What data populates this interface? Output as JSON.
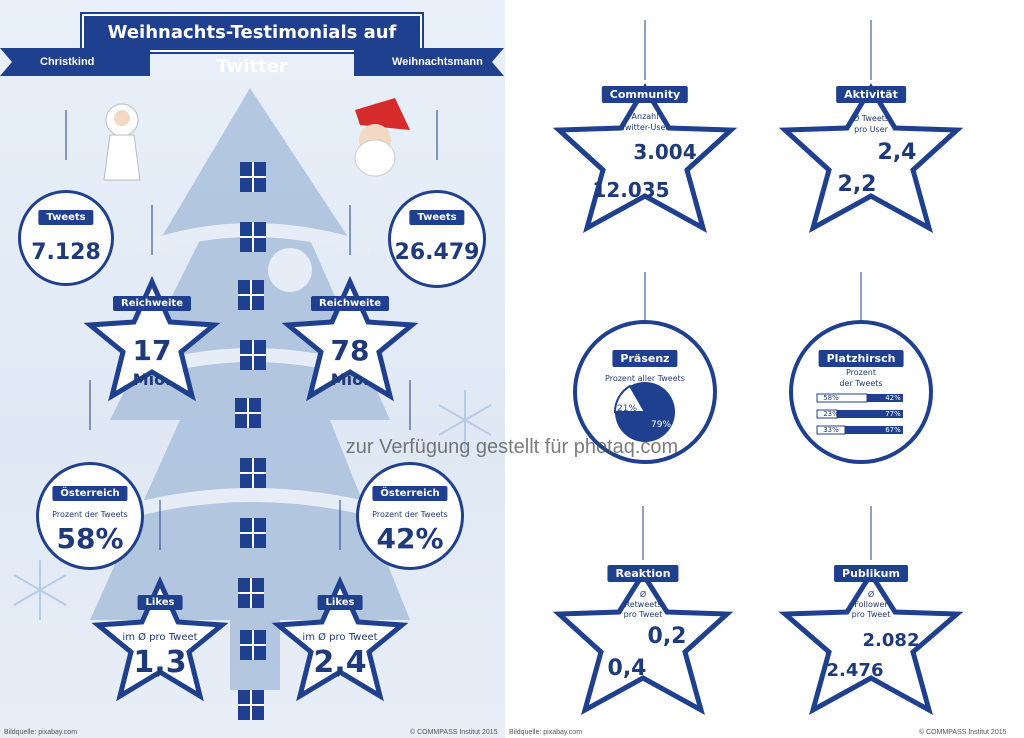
{
  "title": "Weihnachts-Testimonials auf Twitter",
  "ribbon_left": "Christkind",
  "ribbon_right": "Weihnachtsmann",
  "left": {
    "tweets_label": "Tweets",
    "tweets_christkind": "7.128",
    "tweets_weihnachtsmann": "26.479",
    "reichweite_label": "Reichweite",
    "reichweite_christkind": "17",
    "reichweite_weihnachtsmann": "78",
    "mio": "Mio.",
    "oesterreich_label": "Österreich",
    "prozent_der_tweets": "Prozent der Tweets",
    "oesterreich_christkind": "58%",
    "oesterreich_weihnachtsmann": "42%",
    "likes_label": "Likes",
    "im_pro_tweet": "im Ø pro Tweet",
    "likes_christkind": "1,3",
    "likes_weihnachtsmann": "2,4"
  },
  "right": {
    "community_label": "Community",
    "community_sub1": "Anzahl",
    "community_sub2": "Twitter-User",
    "community_christkind": "3.004",
    "community_weihnachtsmann": "12.035",
    "aktivitaet_label": "Aktivität",
    "aktivitaet_sub1": "Ø Tweets",
    "aktivitaet_sub2": "pro User",
    "aktivitaet_christkind": "2,4",
    "aktivitaet_weihnachtsmann": "2,2",
    "praesenz_label": "Präsenz",
    "praesenz_sub": "Prozent aller Tweets",
    "praesenz_christkind": "21%",
    "praesenz_weihnachtsmann": "79%",
    "platzhirsch_label": "Platzhirsch",
    "platzhirsch_sub1": "Prozent",
    "platzhirsch_sub2": "der Tweets",
    "platzhirsch_rows": [
      {
        "left": "58%",
        "right": "42%"
      },
      {
        "left": "23%",
        "right": "77%"
      },
      {
        "left": "33%",
        "right": "67%"
      }
    ],
    "reaktion_label": "Reaktion",
    "reaktion_sub1": "Ø",
    "reaktion_sub2": "Retweets",
    "reaktion_sub3": "pro Tweet",
    "reaktion_christkind": "0,2",
    "reaktion_weihnachtsmann": "0,4",
    "publikum_label": "Publikum",
    "publikum_sub1": "Ø",
    "publikum_sub2": "Follower",
    "publikum_sub3": "pro Tweet",
    "publikum_christkind": "2.082",
    "publikum_weihnachtsmann": "2.476"
  },
  "footer_left_1": "Bildquelle: pixabay.com",
  "footer_left_2": "© COMMPASS Institut 2015",
  "footer_right_1": "Bildquelle: pixabay.com",
  "footer_right_2": "© COMMPASS Institut 2015",
  "watermark": "zur Verfügung gestellt für photaq.com",
  "colors": {
    "navy": "#1f3f8f",
    "tree": "#a9bfdc",
    "background": "#e6edf7"
  }
}
